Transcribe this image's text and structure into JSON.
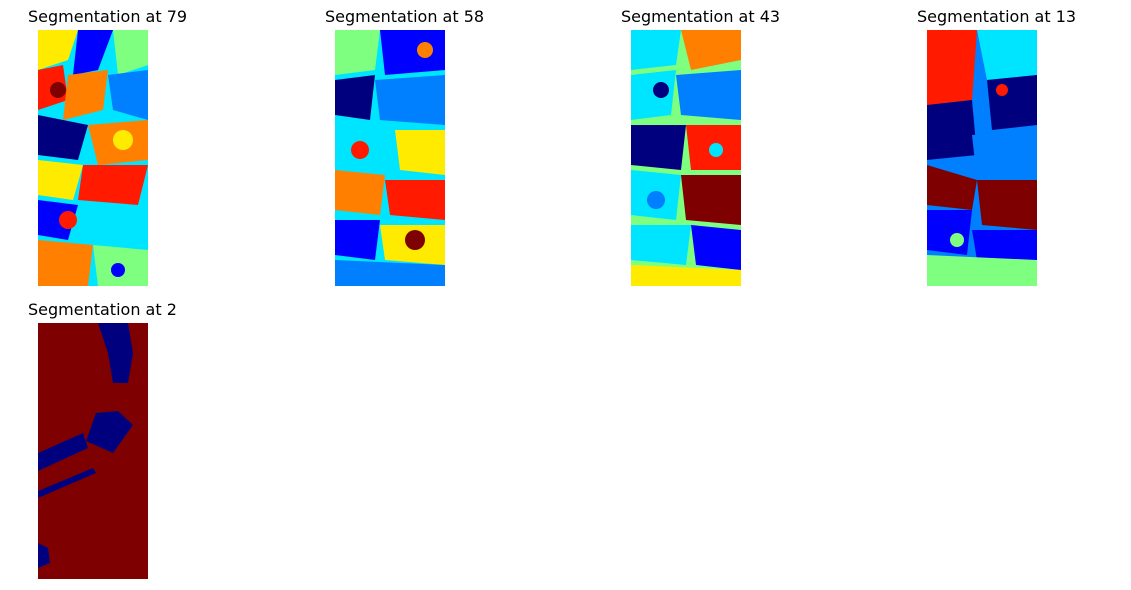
{
  "panels": [
    {
      "title": "Segmentation at 79"
    },
    {
      "title": "Segmentation at 58"
    },
    {
      "title": "Segmentation at 43"
    },
    {
      "title": "Segmentation at 13"
    },
    {
      "title": "Segmentation at 2"
    }
  ],
  "colors": {
    "jet_dark_blue": "#00007f",
    "jet_blue": "#0000ff",
    "jet_azure": "#007fff",
    "jet_cyan": "#00e5ff",
    "jet_aquamarine": "#7fff7f",
    "jet_yellow": "#ffeb00",
    "jet_orange": "#ff8000",
    "jet_red": "#ff1a00",
    "jet_dark_red": "#7f0000"
  }
}
